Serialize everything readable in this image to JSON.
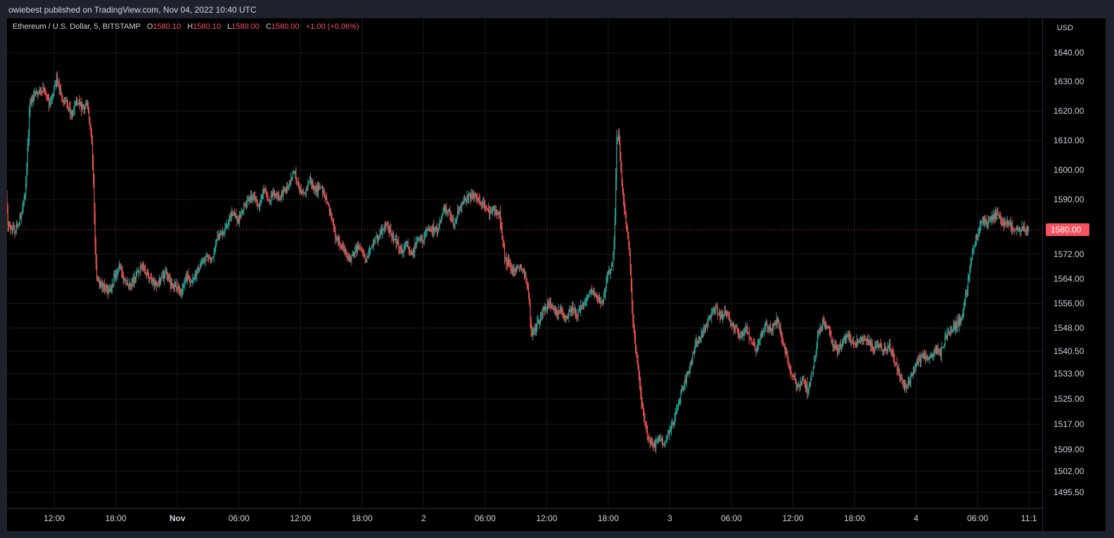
{
  "publish_line": "owiebest published on TradingView.com, Nov 04, 2022 10:40 UTC",
  "legend": {
    "symbol": "Ethereum / U.S. Dollar, 5, BITSTAMP",
    "o_key": "O",
    "o_val": "1580.10",
    "h_key": "H",
    "h_val": "1580.10",
    "l_key": "L",
    "l_val": "1580.00",
    "c_key": "C",
    "c_val": "1580.00",
    "change": "+1.00 (+0.06%)"
  },
  "currency": "USD",
  "colors": {
    "up": "#26a69a",
    "down": "#ef5350",
    "last_price": "#f7525f",
    "grid": "#161a22",
    "background": "#000000"
  },
  "chart_data": {
    "type": "candlestick",
    "symbol": "Ethereum / U.S. Dollar",
    "interval": "5",
    "exchange": "BITSTAMP",
    "last_price": 1580.0,
    "y_ticks": [
      {
        "label": "1640.00",
        "value": 1640.0
      },
      {
        "label": "1630.00",
        "value": 1630.0
      },
      {
        "label": "1620.00",
        "value": 1620.0
      },
      {
        "label": "1610.00",
        "value": 1610.0
      },
      {
        "label": "1600.00",
        "value": 1600.0
      },
      {
        "label": "1590.00",
        "value": 1590.0
      },
      {
        "label": "1572.00",
        "value": 1572.0
      },
      {
        "label": "1564.00",
        "value": 1564.0
      },
      {
        "label": "1556.00",
        "value": 1556.0
      },
      {
        "label": "1548.00",
        "value": 1548.0
      },
      {
        "label": "1540.50",
        "value": 1540.5
      },
      {
        "label": "1533.00",
        "value": 1533.0
      },
      {
        "label": "1525.00",
        "value": 1525.0
      },
      {
        "label": "1517.00",
        "value": 1517.0
      },
      {
        "label": "1509.00",
        "value": 1509.0
      },
      {
        "label": "1502.00",
        "value": 1502.0
      },
      {
        "label": "1495.50",
        "value": 1495.5
      }
    ],
    "x_ticks": [
      {
        "label": "12:00",
        "hour": 12,
        "bold": false
      },
      {
        "label": "18:00",
        "hour": 18,
        "bold": false
      },
      {
        "label": "Nov",
        "hour": 24,
        "bold": true
      },
      {
        "label": "06:00",
        "hour": 30,
        "bold": false
      },
      {
        "label": "12:00",
        "hour": 36,
        "bold": false
      },
      {
        "label": "18:00",
        "hour": 42,
        "bold": false
      },
      {
        "label": "2",
        "hour": 48,
        "bold": false
      },
      {
        "label": "06:00",
        "hour": 54,
        "bold": false
      },
      {
        "label": "12:00",
        "hour": 60,
        "bold": false
      },
      {
        "label": "18:00",
        "hour": 66,
        "bold": false
      },
      {
        "label": "3",
        "hour": 72,
        "bold": false
      },
      {
        "label": "06:00",
        "hour": 78,
        "bold": false
      },
      {
        "label": "12:00",
        "hour": 84,
        "bold": false
      },
      {
        "label": "18:00",
        "hour": 90,
        "bold": false
      },
      {
        "label": "4",
        "hour": 96,
        "bold": false
      },
      {
        "label": "06:00",
        "hour": 102,
        "bold": false
      },
      {
        "label": "11:1",
        "hour": 107,
        "bold": false
      }
    ],
    "x_range_hours": [
      7.4,
      108.3
    ],
    "path": [
      [
        7.4,
        1591
      ],
      [
        7.6,
        1581
      ],
      [
        8.3,
        1580
      ],
      [
        8.9,
        1585
      ],
      [
        9.3,
        1594
      ],
      [
        9.7,
        1622
      ],
      [
        10.2,
        1626
      ],
      [
        11,
        1627
      ],
      [
        11.7,
        1622
      ],
      [
        12.3,
        1631
      ],
      [
        12.8,
        1625
      ],
      [
        13.3,
        1622
      ],
      [
        13.8,
        1619
      ],
      [
        14.2,
        1624
      ],
      [
        14.8,
        1621
      ],
      [
        15.3,
        1622
      ],
      [
        15.7,
        1612
      ],
      [
        15.9,
        1596
      ],
      [
        16.1,
        1570
      ],
      [
        16.3,
        1563
      ],
      [
        16.8,
        1562
      ],
      [
        17.5,
        1560
      ],
      [
        18,
        1565
      ],
      [
        18.5,
        1568
      ],
      [
        19,
        1563
      ],
      [
        19.5,
        1562
      ],
      [
        20,
        1565
      ],
      [
        20.7,
        1568
      ],
      [
        21.3,
        1565
      ],
      [
        22,
        1562
      ],
      [
        22.5,
        1564
      ],
      [
        23,
        1566
      ],
      [
        23.5,
        1562
      ],
      [
        24,
        1562
      ],
      [
        24.5,
        1559
      ],
      [
        25,
        1565
      ],
      [
        25.5,
        1563
      ],
      [
        26,
        1567
      ],
      [
        26.8,
        1571
      ],
      [
        27.5,
        1570
      ],
      [
        28,
        1578
      ],
      [
        28.5,
        1579
      ],
      [
        29,
        1583
      ],
      [
        29.5,
        1586
      ],
      [
        30,
        1583
      ],
      [
        30.5,
        1587
      ],
      [
        31,
        1590
      ],
      [
        31.5,
        1591
      ],
      [
        32,
        1588
      ],
      [
        32.5,
        1594
      ],
      [
        33,
        1590
      ],
      [
        33.5,
        1592
      ],
      [
        34,
        1590
      ],
      [
        34.5,
        1593
      ],
      [
        35,
        1595
      ],
      [
        35.5,
        1600
      ],
      [
        36,
        1593
      ],
      [
        36.5,
        1592
      ],
      [
        37,
        1597
      ],
      [
        37.5,
        1593
      ],
      [
        38,
        1594
      ],
      [
        38.5,
        1591
      ],
      [
        39,
        1585
      ],
      [
        39.5,
        1578
      ],
      [
        40,
        1575
      ],
      [
        40.5,
        1572
      ],
      [
        41,
        1570
      ],
      [
        41.5,
        1574
      ],
      [
        42,
        1573
      ],
      [
        42.5,
        1570
      ],
      [
        43,
        1575
      ],
      [
        43.5,
        1577
      ],
      [
        44,
        1580
      ],
      [
        44.5,
        1582
      ],
      [
        45,
        1578
      ],
      [
        45.5,
        1576
      ],
      [
        46,
        1573
      ],
      [
        46.5,
        1575
      ],
      [
        47,
        1572
      ],
      [
        47.5,
        1578
      ],
      [
        48,
        1576
      ],
      [
        48.5,
        1580
      ],
      [
        49,
        1580
      ],
      [
        49.5,
        1580
      ],
      [
        50,
        1587
      ],
      [
        50.5,
        1586
      ],
      [
        51,
        1582
      ],
      [
        51.5,
        1587
      ],
      [
        52,
        1590
      ],
      [
        52.5,
        1591
      ],
      [
        53,
        1592
      ],
      [
        53.5,
        1589
      ],
      [
        54,
        1588
      ],
      [
        54.5,
        1586
      ],
      [
        55,
        1587
      ],
      [
        55.5,
        1585
      ],
      [
        56,
        1571
      ],
      [
        56.5,
        1568
      ],
      [
        57,
        1566
      ],
      [
        57.5,
        1569
      ],
      [
        58,
        1565
      ],
      [
        58.3,
        1560
      ],
      [
        58.6,
        1546
      ],
      [
        59,
        1548
      ],
      [
        59.5,
        1552
      ],
      [
        60,
        1555
      ],
      [
        60.5,
        1556
      ],
      [
        61,
        1553
      ],
      [
        61.5,
        1554
      ],
      [
        62,
        1551
      ],
      [
        62.5,
        1555
      ],
      [
        63,
        1552
      ],
      [
        63.5,
        1555
      ],
      [
        64,
        1558
      ],
      [
        64.5,
        1560
      ],
      [
        65,
        1558
      ],
      [
        65.5,
        1556
      ],
      [
        66,
        1565
      ],
      [
        66.5,
        1568
      ],
      [
        66.7,
        1580
      ],
      [
        66.9,
        1610
      ],
      [
        67.1,
        1613
      ],
      [
        67.3,
        1600
      ],
      [
        67.6,
        1588
      ],
      [
        67.9,
        1580
      ],
      [
        68.2,
        1570
      ],
      [
        68.5,
        1548
      ],
      [
        68.8,
        1540
      ],
      [
        69.2,
        1528
      ],
      [
        69.6,
        1518
      ],
      [
        70,
        1512
      ],
      [
        70.5,
        1510
      ],
      [
        71,
        1512
      ],
      [
        71.5,
        1511
      ],
      [
        72,
        1515
      ],
      [
        72.5,
        1518
      ],
      [
        73,
        1525
      ],
      [
        73.5,
        1530
      ],
      [
        74,
        1535
      ],
      [
        74.5,
        1542
      ],
      [
        75,
        1545
      ],
      [
        75.5,
        1548
      ],
      [
        76,
        1551
      ],
      [
        76.5,
        1555
      ],
      [
        77,
        1552
      ],
      [
        77.5,
        1553
      ],
      [
        78,
        1550
      ],
      [
        78.5,
        1548
      ],
      [
        79,
        1545
      ],
      [
        79.5,
        1548
      ],
      [
        80,
        1544
      ],
      [
        80.5,
        1541
      ],
      [
        81,
        1546
      ],
      [
        81.5,
        1549
      ],
      [
        82,
        1547
      ],
      [
        82.5,
        1551
      ],
      [
        83,
        1545
      ],
      [
        83.5,
        1538
      ],
      [
        84,
        1532
      ],
      [
        84.5,
        1529
      ],
      [
        85,
        1531
      ],
      [
        85.5,
        1528
      ],
      [
        86,
        1533
      ],
      [
        86.5,
        1545
      ],
      [
        87,
        1550
      ],
      [
        87.5,
        1548
      ],
      [
        88,
        1542
      ],
      [
        88.5,
        1541
      ],
      [
        89,
        1544
      ],
      [
        89.5,
        1546
      ],
      [
        90,
        1543
      ],
      [
        90.5,
        1544
      ],
      [
        91,
        1545
      ],
      [
        91.5,
        1543
      ],
      [
        92,
        1541
      ],
      [
        92.5,
        1542
      ],
      [
        93,
        1541
      ],
      [
        93.5,
        1542
      ],
      [
        94,
        1537
      ],
      [
        94.5,
        1532
      ],
      [
        95,
        1528
      ],
      [
        95.5,
        1531
      ],
      [
        96,
        1536
      ],
      [
        96.5,
        1538
      ],
      [
        97,
        1539
      ],
      [
        97.5,
        1538
      ],
      [
        98,
        1541
      ],
      [
        98.5,
        1540
      ],
      [
        99,
        1545
      ],
      [
        99.5,
        1548
      ],
      [
        100,
        1549
      ],
      [
        100.5,
        1551
      ],
      [
        101,
        1560
      ],
      [
        101.5,
        1572
      ],
      [
        102,
        1578
      ],
      [
        102.5,
        1584
      ],
      [
        103,
        1582
      ],
      [
        103.5,
        1584
      ],
      [
        104,
        1585
      ],
      [
        104.5,
        1582
      ],
      [
        105,
        1583
      ],
      [
        105.5,
        1580
      ],
      [
        106,
        1580
      ],
      [
        106.5,
        1580
      ],
      [
        107,
        1580
      ]
    ]
  }
}
